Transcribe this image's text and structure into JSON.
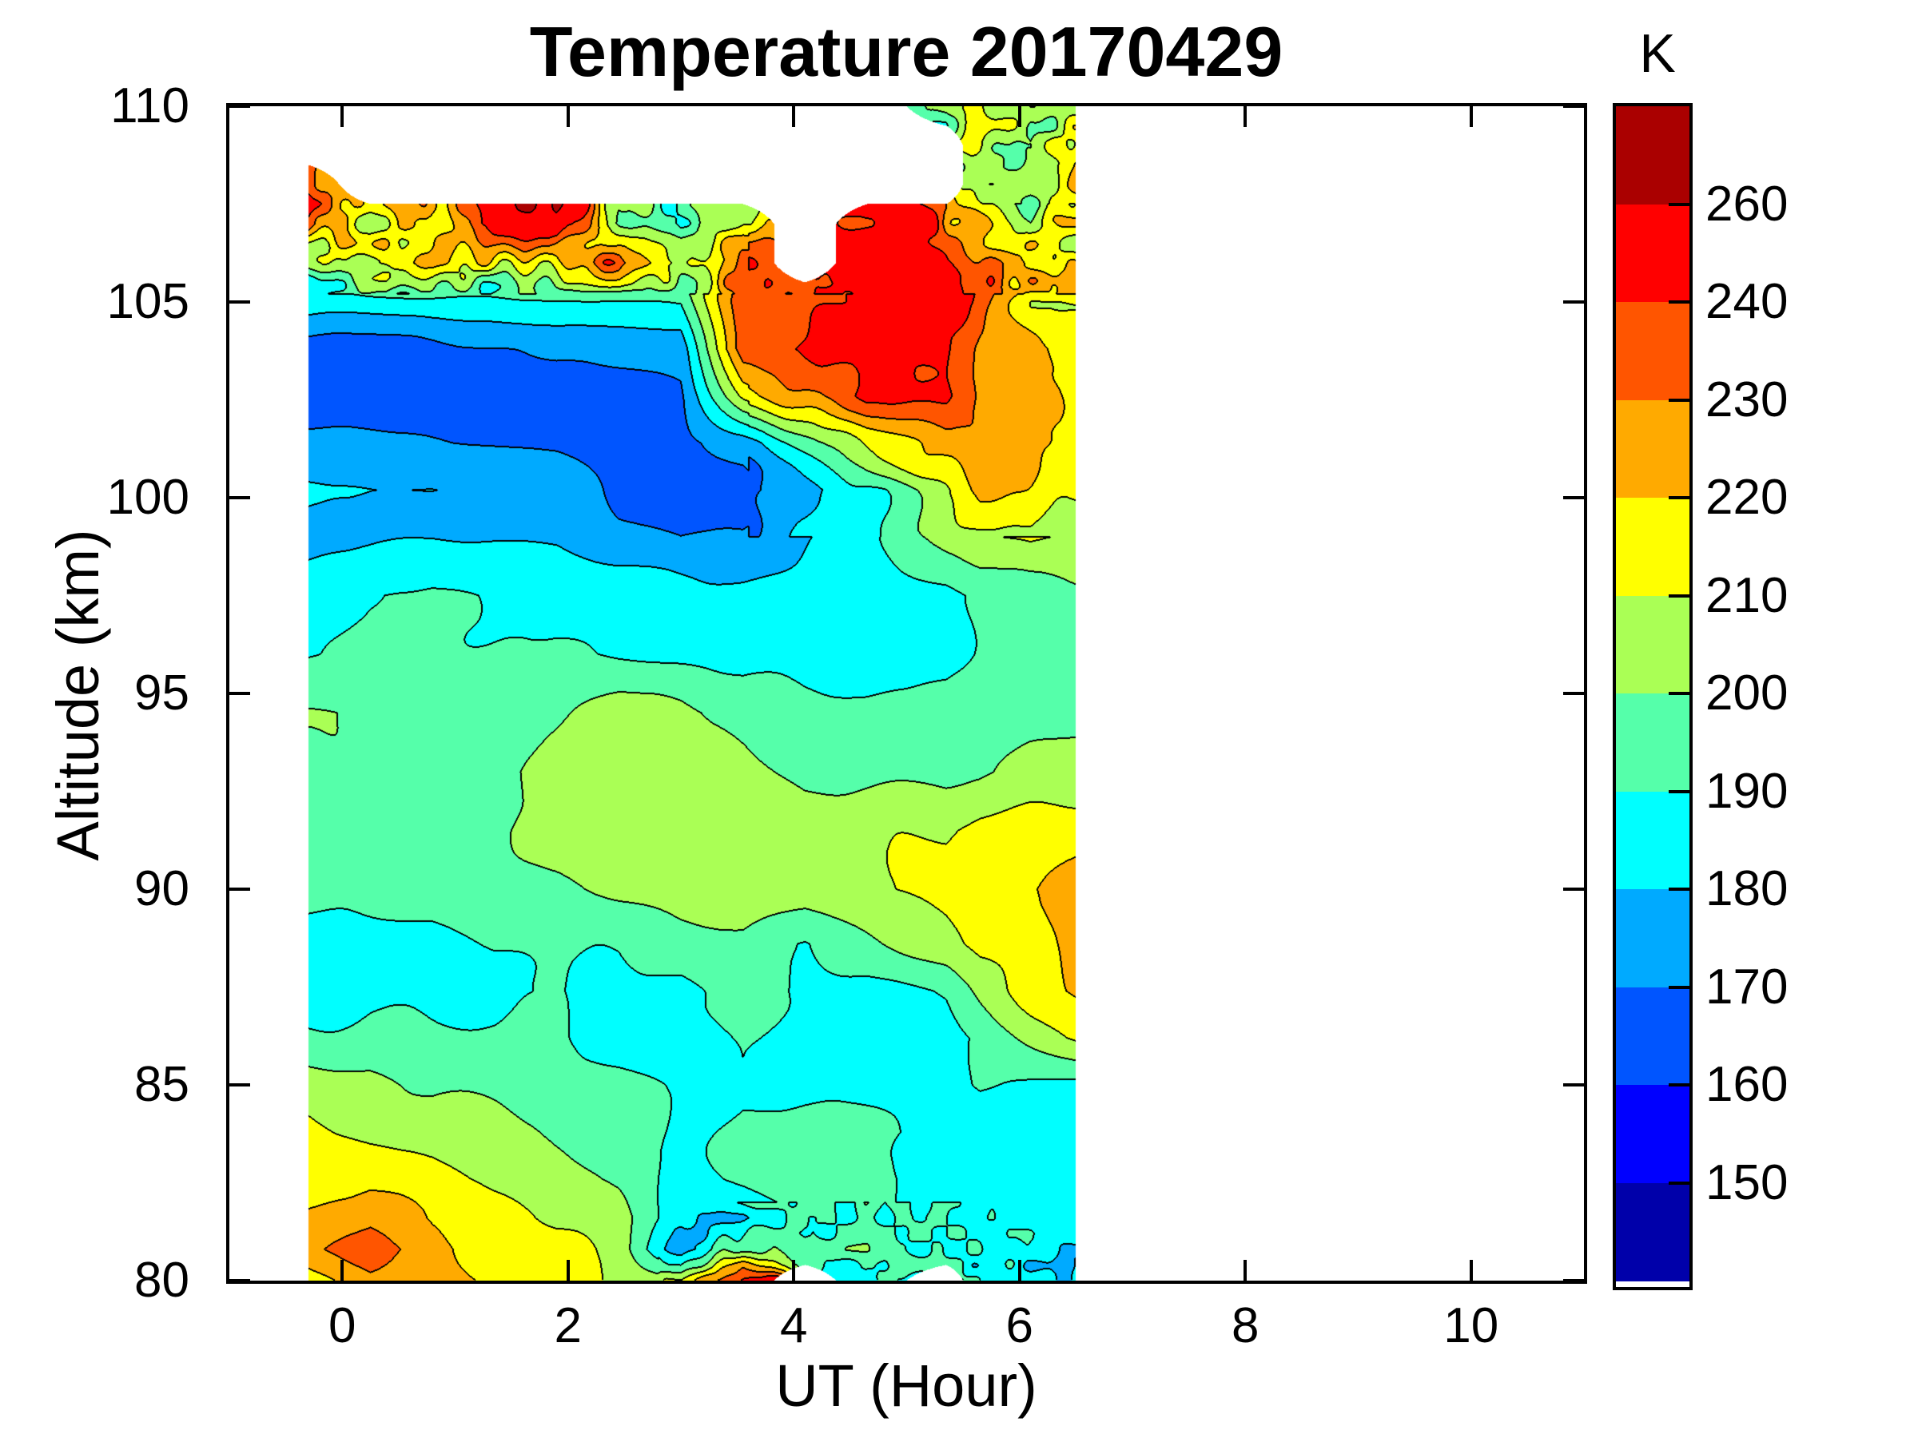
{
  "chart_data": {
    "type": "filled_contour",
    "title": "Temperature 20170429",
    "xlabel": "UT (Hour)",
    "ylabel": "Altitude (km)",
    "colorbar_title": "K",
    "xlim": [
      -1,
      11
    ],
    "ylim": [
      80,
      110
    ],
    "x_ticks": [
      0,
      2,
      4,
      6,
      8,
      10
    ],
    "y_ticks": [
      80,
      85,
      90,
      95,
      100,
      105,
      110
    ],
    "grid_lines": "off",
    "legend_position": "colorbar-right",
    "colorbar_tick_labels": [
      260,
      240,
      230,
      220,
      210,
      200,
      190,
      180,
      170,
      160,
      150
    ],
    "levels": [
      150,
      160,
      170,
      180,
      190,
      200,
      210,
      220,
      230,
      240,
      260
    ],
    "band_colors": [
      "#0000AA",
      "#0000FF",
      "#0055FF",
      "#00AAFF",
      "#00FFFF",
      "#55FFAA",
      "#AAFF55",
      "#FFFF00",
      "#FFAA00",
      "#FF5500",
      "#FF0000",
      "#AA0000"
    ],
    "contour_line_color": "#000000",
    "no_data_color": "#FFFFFF",
    "grid": {
      "ut": [
        -0.3,
        0.25,
        0.8,
        1.35,
        1.9,
        2.45,
        3.0,
        3.55,
        4.1,
        4.65,
        5.35,
        5.65,
        6.1,
        6.5
      ],
      "altitude_km": [
        80,
        80.8,
        81.6,
        82.6,
        83.8,
        85,
        86.2,
        87.4,
        88.6,
        90,
        91.5,
        93,
        94.5,
        96,
        97.5,
        99,
        100.2,
        101.4,
        102.6,
        103.8,
        105,
        106,
        107,
        108,
        109,
        110
      ],
      "temperature_K": [
        [
          214,
          228,
          226,
          220,
          214,
          207,
          204,
          250,
          null,
          188,
          null,
          186,
          178,
          183
        ],
        [
          226,
          236,
          225,
          216,
          212,
          206,
          172,
          205,
          190,
          192,
          188,
          190,
          182,
          184
        ],
        [
          224,
          227,
          218,
          214,
          208,
          205,
          183,
          184,
          190,
          193,
          186,
          185,
          184,
          183
        ],
        [
          215,
          217,
          214,
          208,
          206,
          198,
          186,
          191,
          196,
          194,
          186,
          185,
          184,
          185
        ],
        [
          212,
          208,
          207,
          206,
          199,
          196,
          187,
          192,
          196,
          193,
          186,
          184,
          185,
          186
        ],
        [
          206,
          205,
          198,
          196,
          195,
          194,
          188,
          191,
          186,
          185,
          186,
          192,
          190,
          189
        ],
        [
          191,
          194,
          193,
          192,
          192,
          187,
          186,
          192,
          186,
          184,
          186,
          192,
          204,
          213
        ],
        [
          186,
          187,
          186,
          185,
          191,
          187,
          185,
          193,
          186,
          185,
          192,
          203,
          214,
          222
        ],
        [
          187,
          186,
          185,
          192,
          194,
          191,
          194,
          196,
          188,
          196,
          206,
          213,
          216,
          224
        ],
        [
          193,
          194,
          195,
          196,
          197,
          203,
          206,
          207,
          206,
          208,
          213,
          216,
          218,
          226
        ],
        [
          194,
          195,
          196,
          197,
          204,
          206,
          207,
          206,
          207,
          208,
          208,
          213,
          214,
          215
        ],
        [
          195,
          196,
          196,
          197,
          205,
          207,
          206,
          205,
          197,
          197,
          197,
          198,
          203,
          206
        ],
        [
          202,
          197,
          196,
          195,
          197,
          204,
          203,
          196,
          194,
          193,
          194,
          195,
          196,
          197
        ],
        [
          189,
          192,
          193,
          192,
          191,
          188,
          187,
          186,
          185,
          186,
          187,
          193,
          195,
          196
        ],
        [
          186,
          191,
          192,
          189,
          187,
          186,
          185,
          184,
          184,
          185,
          186,
          192,
          194,
          196
        ],
        [
          177,
          177,
          178,
          178,
          177,
          171,
          168,
          170,
          178,
          186,
          205,
          210,
          214,
          208
        ],
        [
          181,
          181,
          182,
          181,
          180,
          166,
          165,
          167,
          176,
          188,
          210,
          224,
          222,
          212
        ],
        [
          172,
          172,
          171,
          170,
          169,
          167,
          166,
          174,
          196,
          215,
          226,
          228,
          225,
          214
        ],
        [
          163,
          163,
          164,
          164,
          165,
          166,
          168,
          211,
          228,
          244,
          243,
          230,
          224,
          213
        ],
        [
          164,
          165,
          166,
          168,
          171,
          173,
          174,
          238,
          242,
          248,
          246,
          232,
          226,
          214
        ],
        [
          186,
          187,
          188,
          187,
          188,
          188,
          190,
          238,
          231,
          245,
          247,
          240,
          215,
          210
        ],
        [
          196,
          218,
          225,
          215,
          210,
          235,
          204,
          228,
          null,
          250,
          252,
          238,
          224,
          214
        ],
        [
          238,
          210,
          222,
          250,
          262,
          200,
          192,
          210,
          null,
          245,
          232,
          228,
          205,
          216
        ],
        [
          232,
          null,
          null,
          null,
          null,
          null,
          null,
          null,
          null,
          null,
          null,
          195,
          200,
          225
        ],
        [
          null,
          null,
          null,
          null,
          null,
          null,
          null,
          null,
          null,
          null,
          null,
          210,
          193,
          220
        ],
        [
          null,
          null,
          null,
          null,
          null,
          null,
          null,
          null,
          null,
          null,
          195,
          212,
          208,
          205
        ]
      ]
    },
    "noise_texture": [
      {
        "ut": [
          -0.4,
          6.6
        ],
        "alt": [
          105.2,
          110.3
        ],
        "amp": 11,
        "ut_scale": 0.18,
        "alt_scale": 0.5,
        "seed": 1
      },
      {
        "ut": [
          2.8,
          6.6
        ],
        "alt": [
          79.7,
          82.0
        ],
        "amp": 8,
        "ut_scale": 0.16,
        "alt_scale": 0.4,
        "seed": 2
      },
      {
        "ut": [
          3.6,
          6.6
        ],
        "alt": [
          99.0,
          107.5
        ],
        "amp": 6,
        "ut_scale": 0.3,
        "alt_scale": 0.8,
        "seed": 3
      },
      {
        "ut": [
          -0.4,
          6.6
        ],
        "alt": [
          79.7,
          110.3
        ],
        "amp": 2.5,
        "ut_scale": 0.55,
        "alt_scale": 1.3,
        "seed": 4
      }
    ]
  }
}
